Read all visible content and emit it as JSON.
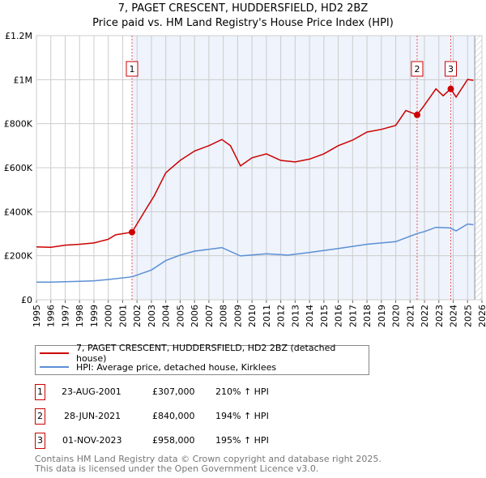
{
  "chart_data": {
    "type": "line",
    "title": "7, PAGET CRESCENT, HUDDERSFIELD, HD2 2BZ",
    "subtitle": "Price paid vs. HM Land Registry's House Price Index (HPI)",
    "xlim": [
      1995,
      2026
    ],
    "ylim": [
      0,
      1200000
    ],
    "x_ticks": [
      "1995",
      "1996",
      "1997",
      "1998",
      "1999",
      "2000",
      "2001",
      "2002",
      "2003",
      "2004",
      "2005",
      "2006",
      "2007",
      "2008",
      "2009",
      "2010",
      "2011",
      "2012",
      "2013",
      "2014",
      "2015",
      "2016",
      "2017",
      "2018",
      "2019",
      "2020",
      "2021",
      "2022",
      "2023",
      "2024",
      "2025",
      "2026"
    ],
    "y_ticks": [
      {
        "v": 0,
        "label": "£0"
      },
      {
        "v": 200000,
        "label": "£200K"
      },
      {
        "v": 400000,
        "label": "£400K"
      },
      {
        "v": 600000,
        "label": "£600K"
      },
      {
        "v": 800000,
        "label": "£800K"
      },
      {
        "v": 1000000,
        "label": "£1M"
      },
      {
        "v": 1200000,
        "label": "£1.2M"
      }
    ],
    "grid": true,
    "series": [
      {
        "name": "7, PAGET CRESCENT, HUDDERSFIELD, HD2 2BZ (detached house)",
        "color": "#cc0000",
        "x": [
          1995,
          1996,
          1997,
          1998,
          1999,
          2000,
          2000.5,
          2001.65,
          2002.5,
          2003.2,
          2004,
          2005,
          2006,
          2007,
          2007.9,
          2008.5,
          2009.2,
          2010,
          2011,
          2012,
          2013,
          2014,
          2015,
          2016,
          2017,
          2018,
          2019,
          2020,
          2020.7,
          2021.49,
          2022,
          2022.8,
          2023.3,
          2023.83,
          2024.2,
          2025,
          2025.4
        ],
        "y": [
          240000,
          238000,
          248000,
          252000,
          258000,
          275000,
          295000,
          307000,
          399000,
          473000,
          577000,
          633000,
          676000,
          700000,
          728000,
          700000,
          608000,
          645000,
          663000,
          633000,
          626000,
          639000,
          663000,
          700000,
          725000,
          762000,
          774000,
          792000,
          860000,
          840000,
          884000,
          958000,
          927000,
          958000,
          921000,
          1001000,
          997000
        ]
      },
      {
        "name": "HPI: Average price, detached house, Kirklees",
        "color": "#5b8fd4",
        "x": [
          1995,
          1996,
          1997,
          1998,
          1999,
          2000,
          2001.65,
          2003,
          2004,
          2005,
          2006,
          2007.9,
          2009.2,
          2011,
          2012.5,
          2014,
          2016,
          2018,
          2020,
          2021.5,
          2022,
          2022.8,
          2023.8,
          2024.2,
          2025,
          2025.4
        ],
        "y": [
          80000,
          80000,
          82000,
          84000,
          86000,
          92000,
          104000,
          135000,
          178000,
          203000,
          221000,
          237000,
          199000,
          209000,
          203000,
          215000,
          233000,
          252000,
          264000,
          301000,
          310000,
          329000,
          326000,
          313000,
          344000,
          341000
        ]
      }
    ],
    "sales": [
      {
        "n": "1",
        "x": 2001.65,
        "y": 307000
      },
      {
        "n": "2",
        "x": 2021.49,
        "y": 840000
      },
      {
        "n": "3",
        "x": 2023.83,
        "y": 958000
      }
    ],
    "shaded_from": 2001.65,
    "hatched_from": 2025.5
  },
  "legend": {
    "red": "7, PAGET CRESCENT, HUDDERSFIELD, HD2 2BZ (detached house)",
    "blue": "HPI: Average price, detached house, Kirklees"
  },
  "table": [
    {
      "n": "1",
      "date": "23-AUG-2001",
      "price": "£307,000",
      "hpi": "210% ↑ HPI"
    },
    {
      "n": "2",
      "date": "28-JUN-2021",
      "price": "£840,000",
      "hpi": "194% ↑ HPI"
    },
    {
      "n": "3",
      "date": "01-NOV-2023",
      "price": "£958,000",
      "hpi": "195% ↑ HPI"
    }
  ],
  "footer": {
    "line1": "Contains HM Land Registry data © Crown copyright and database right 2025.",
    "line2": "This data is licensed under the Open Government Licence v3.0."
  }
}
